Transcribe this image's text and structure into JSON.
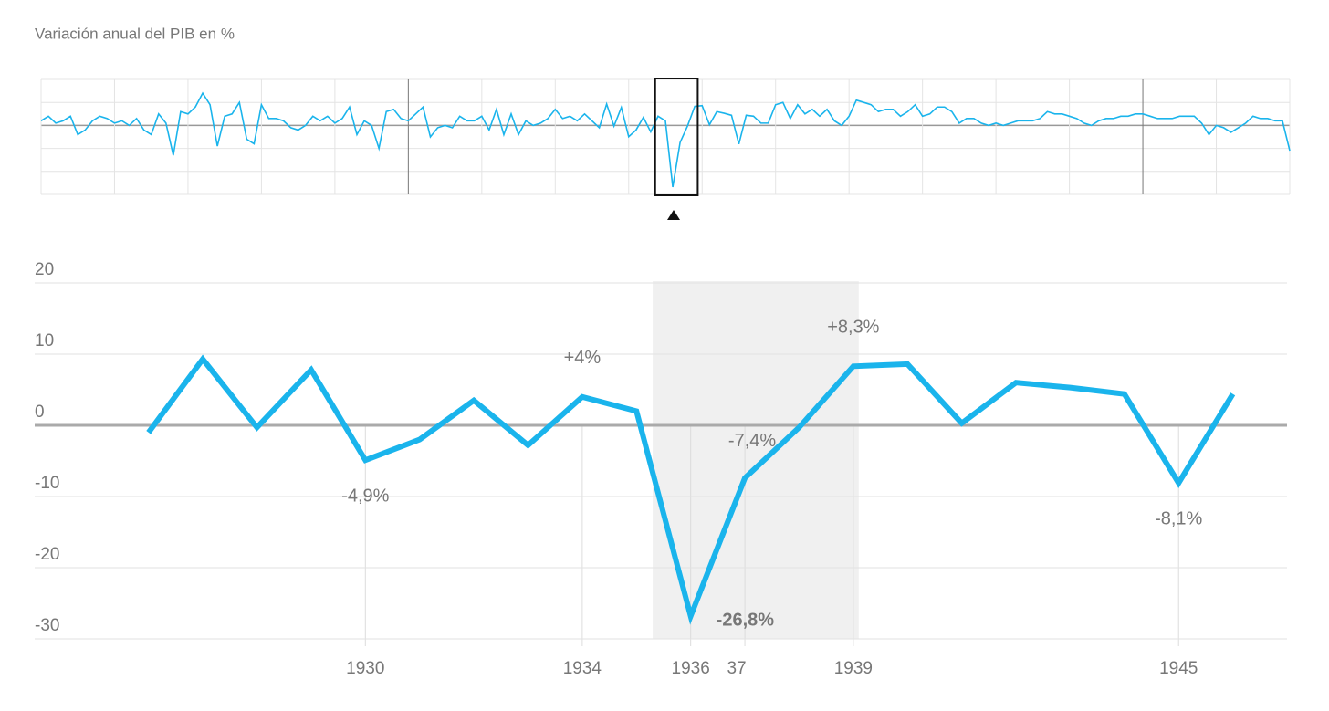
{
  "chart_data": [
    {
      "type": "line",
      "title": "Variación anual del PIB en %",
      "x": [
        1850,
        1851,
        1852,
        1853,
        1854,
        1855,
        1856,
        1857,
        1858,
        1859,
        1860,
        1861,
        1862,
        1863,
        1864,
        1865,
        1866,
        1867,
        1868,
        1869,
        1870,
        1871,
        1872,
        1873,
        1874,
        1875,
        1876,
        1877,
        1878,
        1879,
        1880,
        1881,
        1882,
        1883,
        1884,
        1885,
        1886,
        1887,
        1888,
        1889,
        1890,
        1891,
        1892,
        1893,
        1894,
        1895,
        1896,
        1897,
        1898,
        1899,
        1900,
        1901,
        1902,
        1903,
        1904,
        1905,
        1906,
        1907,
        1908,
        1909,
        1910,
        1911,
        1912,
        1913,
        1914,
        1915,
        1916,
        1917,
        1918,
        1919,
        1920,
        1921,
        1922,
        1923,
        1924,
        1925,
        1926,
        1927,
        1928,
        1929,
        1930,
        1931,
        1932,
        1933,
        1934,
        1935,
        1936,
        1937,
        1938,
        1939,
        1940,
        1941,
        1942,
        1943,
        1944,
        1945,
        1946,
        1947,
        1948,
        1949,
        1950,
        1951,
        1952,
        1953,
        1954,
        1955,
        1956,
        1957,
        1958,
        1959,
        1960,
        1961,
        1962,
        1963,
        1964,
        1965,
        1966,
        1967,
        1968,
        1969,
        1970,
        1971,
        1972,
        1973,
        1974,
        1975,
        1976,
        1977,
        1978,
        1979,
        1980,
        1981,
        1982,
        1983,
        1984,
        1985,
        1986,
        1987,
        1988,
        1989,
        1990,
        1991,
        1992,
        1993,
        1994,
        1995,
        1996,
        1997,
        1998,
        1999,
        2000,
        2001,
        2002,
        2003,
        2004,
        2005,
        2006,
        2007,
        2008,
        2009,
        2010,
        2011,
        2012,
        2013,
        2014,
        2015,
        2016,
        2017,
        2018,
        2019,
        2020
      ],
      "series": [
        {
          "color": "#1ab4ec",
          "values": [
            2,
            4,
            1,
            2,
            4,
            -4,
            -2,
            2,
            4,
            3,
            1,
            2,
            0,
            3,
            -2,
            -4,
            5,
            1,
            -13,
            6,
            5,
            8,
            14,
            9,
            -9,
            4,
            5,
            10,
            -6,
            -8,
            9,
            3,
            3,
            2,
            -1,
            -2,
            0,
            4,
            2,
            4,
            1,
            3,
            8,
            -4,
            2,
            0,
            -10,
            6,
            7,
            3,
            2,
            5,
            8,
            -5,
            -1,
            0,
            -1,
            4,
            2,
            2,
            4,
            -2,
            7,
            -4,
            5,
            -4,
            2,
            0,
            1,
            3,
            7,
            3,
            4,
            2,
            5,
            2,
            -1,
            9.3,
            -0.3,
            7.8,
            -4.9,
            -2,
            3.5,
            -2.8,
            4,
            2,
            -26.8,
            -7.4,
            -0.3,
            8.3,
            8.6,
            0.3,
            6,
            5.3,
            4.4,
            -8.1,
            4.4,
            4,
            1,
            1,
            9,
            10,
            3,
            9,
            5,
            7,
            4,
            7,
            2,
            0,
            4,
            11,
            10,
            9,
            6,
            7,
            7,
            4,
            6,
            9,
            4,
            5,
            8,
            8,
            6,
            1,
            3,
            3,
            1,
            0,
            1,
            0,
            1,
            2,
            2,
            2,
            3,
            6,
            5,
            5,
            4,
            3,
            1,
            0,
            2,
            3,
            3,
            4,
            4,
            5,
            5,
            4,
            3,
            3,
            3,
            4,
            4,
            4,
            1,
            -4,
            0,
            -1,
            -3,
            -1,
            1,
            4,
            3,
            3,
            2,
            2,
            -11
          ]
        }
      ],
      "xlim": [
        1850,
        2020
      ],
      "ylim": [
        -30,
        20
      ],
      "xgrid": [
        1850,
        1860,
        1870,
        1880,
        1890,
        1900,
        1910,
        1920,
        1930,
        1940,
        1950,
        1960,
        1970,
        1980,
        1990,
        2000,
        2010,
        2020
      ],
      "xgrid_major": [
        1900,
        2000
      ],
      "ygrid": [
        -30,
        -20,
        -10,
        0,
        10,
        20
      ],
      "brush": [
        1933.6,
        1939.4
      ]
    },
    {
      "type": "line",
      "x": [
        1926,
        1927,
        1928,
        1929,
        1930,
        1931,
        1932,
        1933,
        1934,
        1935,
        1936,
        1937,
        1938,
        1939,
        1940,
        1941,
        1942,
        1943,
        1944,
        1945,
        1946
      ],
      "series": [
        {
          "color": "#1ab4ec",
          "values": [
            -1,
            9.3,
            -0.3,
            7.8,
            -4.9,
            -2,
            3.5,
            -2.8,
            4,
            2,
            -26.8,
            -7.4,
            -0.3,
            8.3,
            8.6,
            0.3,
            6,
            5.3,
            4.4,
            -8.1,
            4.4
          ],
          "value_labels": [
            null,
            null,
            null,
            null,
            "-4,9%",
            null,
            null,
            null,
            "+4%",
            null,
            "-26,8%",
            "-7,4%",
            null,
            "+8,3%",
            null,
            null,
            null,
            null,
            null,
            "-8,1%",
            null
          ]
        }
      ],
      "xlim": [
        1923.9,
        1947
      ],
      "ylim": [
        -30,
        20
      ],
      "xticks": [
        1930,
        1934,
        1936,
        {
          "value": 1937,
          "label": "37"
        },
        1939,
        1945
      ],
      "yticks": [
        -30,
        -20,
        -10,
        0,
        10,
        20
      ],
      "highlight": [
        1935.3,
        1939.1
      ]
    }
  ]
}
